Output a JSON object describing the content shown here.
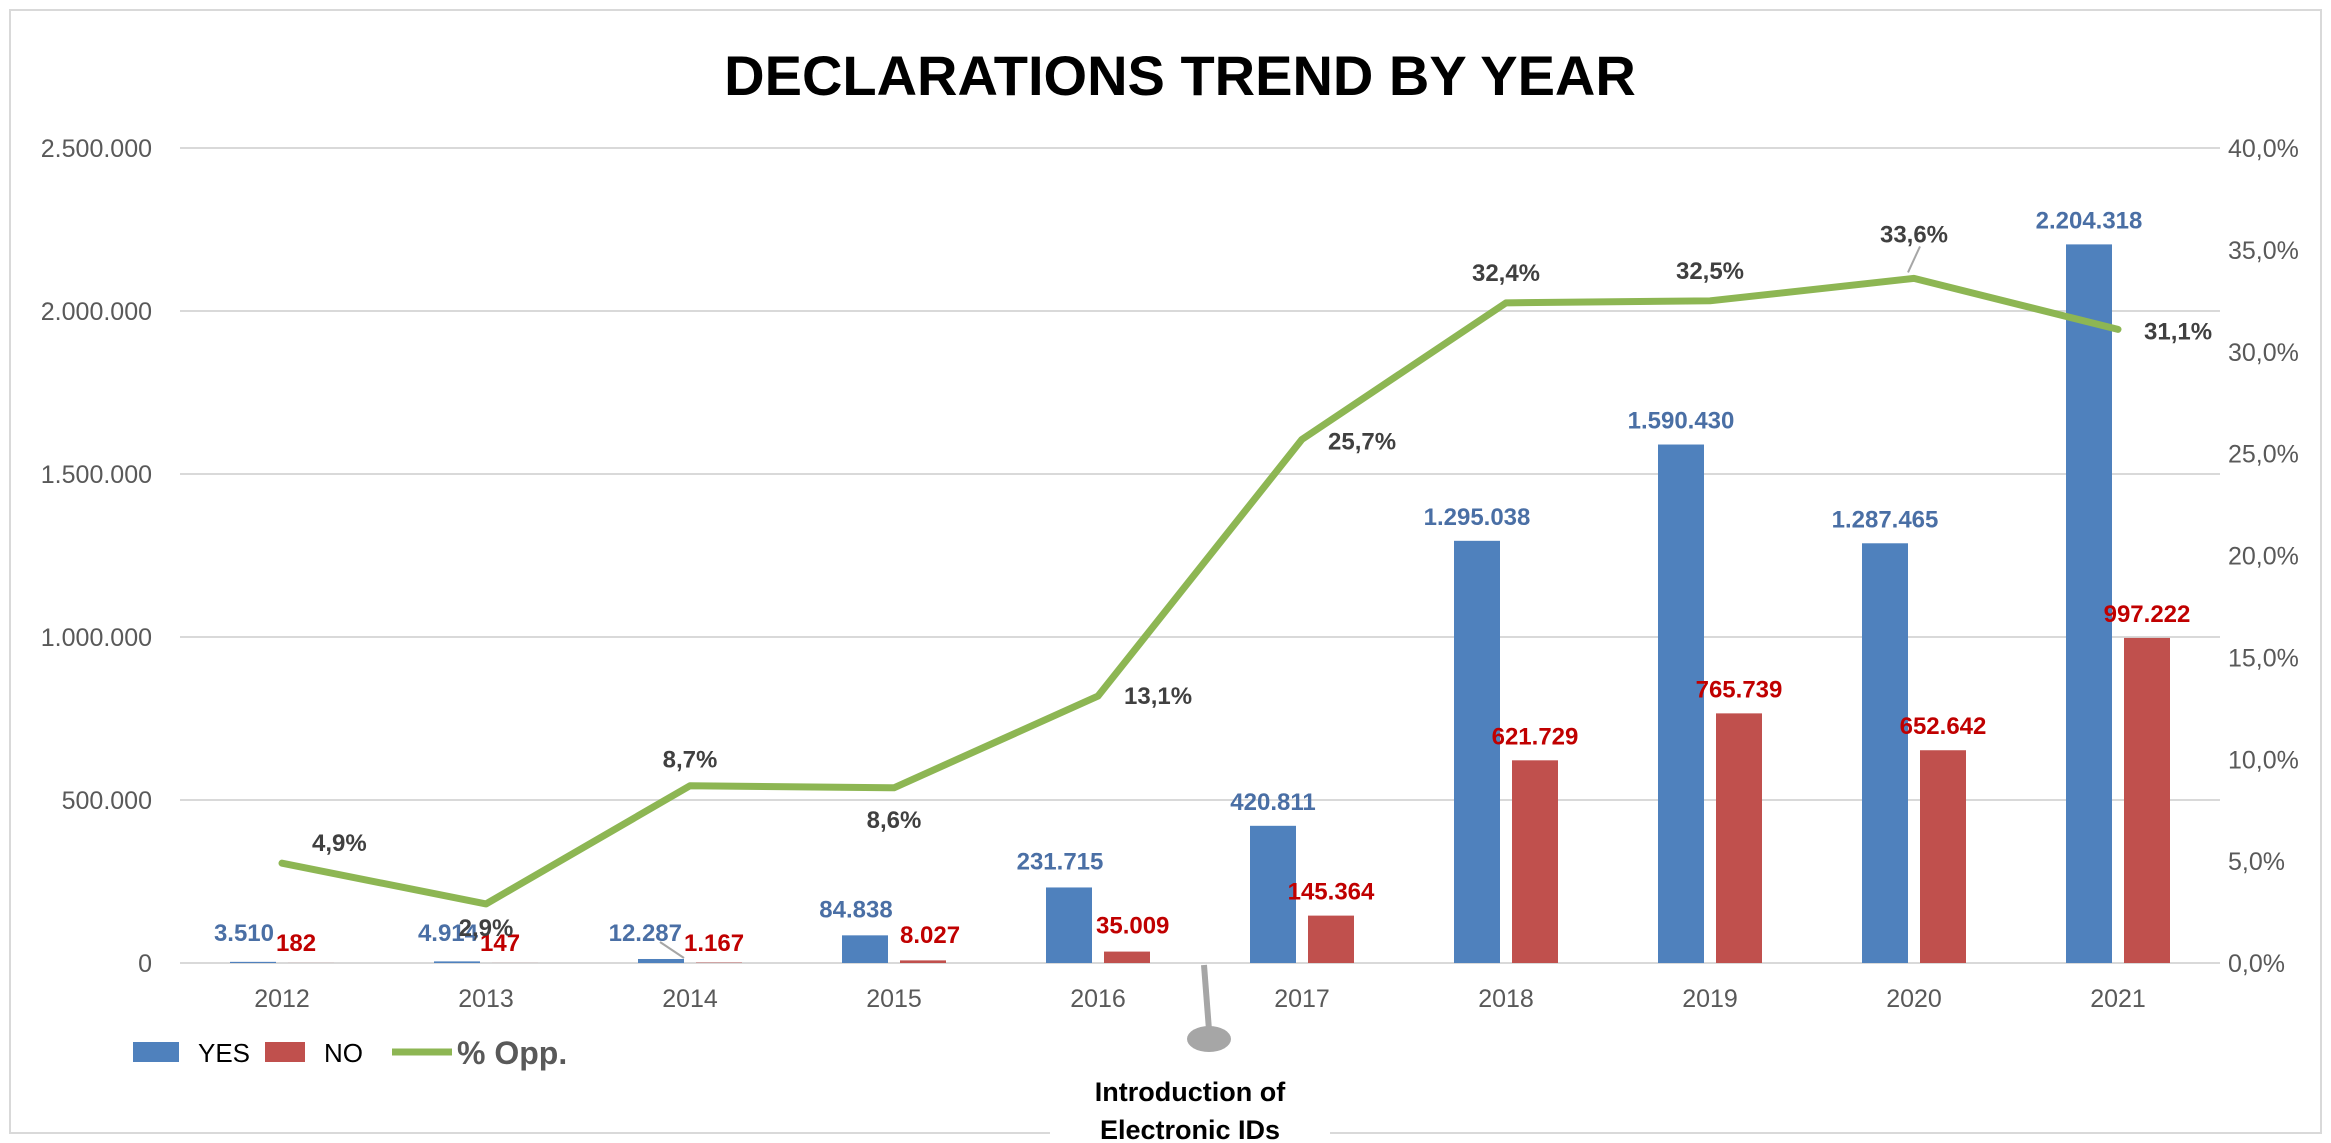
{
  "chart_data": {
    "type": "bar",
    "title": "DECLARATIONS TREND BY YEAR",
    "categories": [
      "2012",
      "2013",
      "2014",
      "2015",
      "2016",
      "2017",
      "2018",
      "2019",
      "2020",
      "2021"
    ],
    "series": [
      {
        "name": "YES",
        "type": "bar",
        "axis": "left",
        "color": "#4f81bd",
        "label_color": "#4a6fa5",
        "values": [
          3510,
          4914,
          12287,
          84838,
          231715,
          420811,
          1295038,
          1590430,
          1287465,
          2204318
        ],
        "labels": [
          "3.510",
          "4.914",
          "12.287",
          "84.838",
          "231.715",
          "420.811",
          "1.295.038",
          "1.590.430",
          "1.287.465",
          "2.204.318"
        ]
      },
      {
        "name": "NO",
        "type": "bar",
        "axis": "left",
        "color": "#c0504d",
        "label_color": "#c00000",
        "values": [
          182,
          147,
          1167,
          8027,
          35009,
          145364,
          621729,
          765739,
          652642,
          997222
        ],
        "labels": [
          "182",
          "147",
          "1.167",
          "8.027",
          "35.009",
          "145.364",
          "621.729",
          "765.739",
          "652.642",
          "997.222"
        ]
      },
      {
        "name": "% Opp.",
        "type": "line",
        "axis": "right",
        "color": "#8db653",
        "label_color": "#404040",
        "values": [
          4.9,
          2.9,
          8.7,
          8.6,
          13.1,
          25.7,
          32.4,
          32.5,
          33.6,
          31.1
        ],
        "labels": [
          "4,9%",
          "2,9%",
          "8,7%",
          "8,6%",
          "13,1%",
          "25,7%",
          "32,4%",
          "32,5%",
          "33,6%",
          "31,1%"
        ]
      }
    ],
    "y_left": {
      "ylim": [
        0,
        2500000
      ],
      "ticks": [
        0,
        500000,
        1000000,
        1500000,
        2000000,
        2500000
      ],
      "tick_labels": [
        "0",
        "500.000",
        "1.000.000",
        "1.500.000",
        "2.000.000",
        "2.500.000"
      ]
    },
    "y_right": {
      "ylim": [
        0,
        40
      ],
      "ticks": [
        0,
        5,
        10,
        15,
        20,
        25,
        30,
        35,
        40
      ],
      "tick_labels": [
        "0,0%",
        "5,0%",
        "10,0%",
        "15,0%",
        "20,0%",
        "25,0%",
        "30,0%",
        "35,0%",
        "40,0%"
      ]
    },
    "grid": true,
    "legend": "bottom-left",
    "annotation": {
      "lines": [
        "Introduction of",
        "Electronic IDs"
      ],
      "between": [
        "2016",
        "2017"
      ]
    },
    "colors": {
      "grid": "#d9d9d9",
      "tick_text": "#595959",
      "callout": "#a6a6a6"
    }
  }
}
